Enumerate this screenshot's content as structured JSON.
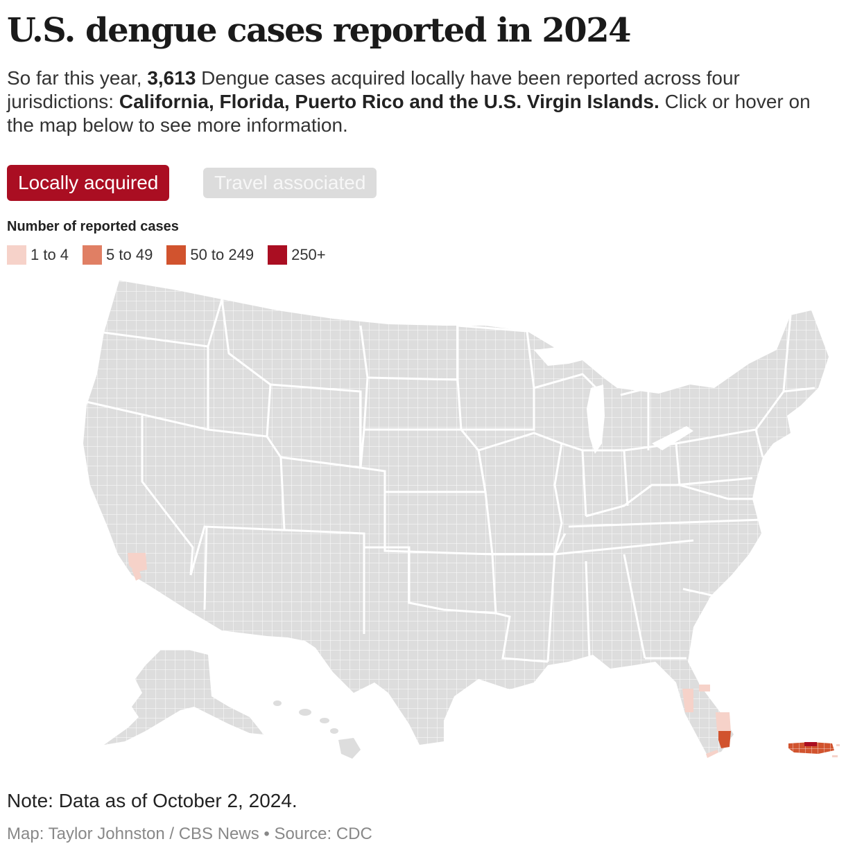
{
  "title": "U.S. dengue cases reported in 2024",
  "dek": {
    "part1": "So far this year, ",
    "count": "3,613",
    "part2": " Dengue cases acquired locally have been reported across four jurisdictions: ",
    "places": "California, Florida, Puerto Rico and the U.S. Virgin Islands.",
    "part3": " Click or hover on the map below to see more information."
  },
  "toggles": {
    "local": "Locally acquired",
    "travel": "Travel associated",
    "selected": "local"
  },
  "legend": {
    "title": "Number of reported cases",
    "items": [
      {
        "label": "1 to 4",
        "color": "#f6d2c9"
      },
      {
        "label": "5 to 49",
        "color": "#e07f64"
      },
      {
        "label": "50 to 249",
        "color": "#d1532e"
      },
      {
        "label": "250+",
        "color": "#aa0e22"
      }
    ]
  },
  "map_colors": {
    "land": "#dddddd",
    "borders": "#ffffff"
  },
  "highlighted_regions": [
    {
      "name": "Los Angeles County, California",
      "bucket": "1 to 4"
    },
    {
      "name": "Orange County, California",
      "bucket": "1 to 4"
    },
    {
      "name": "Pinellas County, Florida",
      "bucket": "1 to 4"
    },
    {
      "name": "Hillsborough County, Florida",
      "bucket": "1 to 4"
    },
    {
      "name": "Polk County, Florida",
      "bucket": "1 to 4"
    },
    {
      "name": "Palm Beach County, Florida",
      "bucket": "1 to 4"
    },
    {
      "name": "Broward County, Florida",
      "bucket": "1 to 4"
    },
    {
      "name": "Miami-Dade County, Florida",
      "bucket": "50 to 249"
    },
    {
      "name": "Monroe County, Florida",
      "bucket": "1 to 4"
    },
    {
      "name": "Puerto Rico",
      "bucket": "250+"
    },
    {
      "name": "U.S. Virgin Islands",
      "bucket": "1 to 4"
    }
  ],
  "note": "Note: Data as of October 2, 2024.",
  "credit": "Map: Taylor Johnston / CBS News • Source: CDC"
}
